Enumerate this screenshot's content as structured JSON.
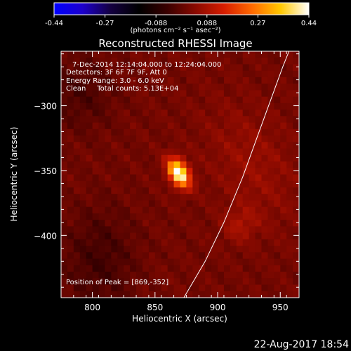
{
  "chart_data": {
    "type": "heatmap",
    "title": "Reconstructed RHESSI Image",
    "xlabel": "Heliocentric X (arcsec)",
    "ylabel": "Heliocentric Y (arcsec)",
    "xlim": [
      775,
      965
    ],
    "ylim": [
      -448,
      -258
    ],
    "x_ticks": [
      800,
      850,
      900,
      950
    ],
    "y_ticks": [
      -300,
      -350,
      -400
    ],
    "colorbar": {
      "ticks": [
        "-0.44",
        "-0.27",
        "-0.088",
        "0.088",
        "0.27",
        "0.44"
      ],
      "range": [
        -0.44,
        0.44
      ],
      "units": "(photons cm⁻² s⁻¹ asec⁻²)"
    },
    "info_lines": [
      "7-Dec-2014 12:14:04.000 to 12:24:04.000",
      "Detectors: 3F 6F 7F 9F, Att 0",
      "Energy Range: 3.0 - 6.0 keV",
      "Clean     Total counts: 5.13E+04"
    ],
    "peak_text": "Position of Peak = [869,-352]",
    "peak": {
      "x": 869,
      "y": -352,
      "value": 0.44
    },
    "sources": [
      {
        "x": 869,
        "y": -352,
        "peak": 0.44,
        "sx": 5,
        "sy": 8
      },
      {
        "x": 918,
        "y": -392,
        "peak": 0.06,
        "sx": 10,
        "sy": 9
      },
      {
        "x": 928,
        "y": -345,
        "peak": 0.045,
        "sx": 22,
        "sy": 35
      }
    ],
    "limb": [
      [
        873,
        -448
      ],
      [
        890,
        -420
      ],
      [
        905,
        -390
      ],
      [
        920,
        -355
      ],
      [
        935,
        -315
      ],
      [
        952,
        -270
      ],
      [
        957,
        -258
      ]
    ],
    "colormap": [
      "#0000ff",
      "#1d00cc",
      "#140040",
      "#000000",
      "#3a0000",
      "#8a0a00",
      "#d61d00",
      "#ff6a00",
      "#ffc800",
      "#ffffff"
    ]
  },
  "footer": {
    "date": "22-Aug-2017 18:54"
  }
}
